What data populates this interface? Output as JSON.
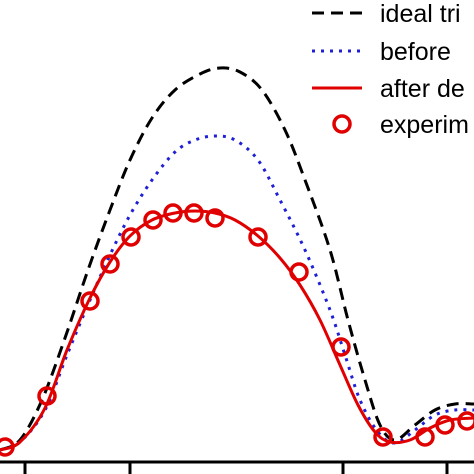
{
  "chart_data": {
    "type": "line",
    "title": "",
    "xlabel": "",
    "ylabel": "",
    "xlim": [
      0,
      474
    ],
    "ylim": [
      0,
      474
    ],
    "legend": {
      "placement": "top-right",
      "entries": [
        {
          "label": "ideal tri",
          "style": "dashed",
          "color": "#000000"
        },
        {
          "label": "before",
          "style": "dotted",
          "color": "#1f1fd6"
        },
        {
          "label": "after de",
          "style": "solid",
          "color": "#e00000"
        },
        {
          "label": "experim",
          "style": "circle",
          "color": "#e00000"
        }
      ]
    },
    "series": [
      {
        "name": "ideal tri",
        "points": [
          [
            0,
            450
          ],
          [
            20,
            440
          ],
          [
            42,
            400
          ],
          [
            65,
            338
          ],
          [
            88,
            270
          ],
          [
            110,
            210
          ],
          [
            130,
            160
          ],
          [
            152,
            118
          ],
          [
            175,
            90
          ],
          [
            200,
            74
          ],
          [
            220,
            68
          ],
          [
            240,
            72
          ],
          [
            262,
            90
          ],
          [
            285,
            130
          ],
          [
            305,
            180
          ],
          [
            330,
            250
          ],
          [
            348,
            320
          ],
          [
            365,
            380
          ],
          [
            380,
            425
          ],
          [
            395,
            440
          ],
          [
            415,
            425
          ],
          [
            435,
            410
          ],
          [
            455,
            404
          ],
          [
            474,
            404
          ]
        ]
      },
      {
        "name": "before",
        "points": [
          [
            0,
            450
          ],
          [
            20,
            442
          ],
          [
            45,
            410
          ],
          [
            67,
            355
          ],
          [
            90,
            300
          ],
          [
            110,
            255
          ],
          [
            130,
            215
          ],
          [
            152,
            180
          ],
          [
            175,
            152
          ],
          [
            195,
            140
          ],
          [
            215,
            136
          ],
          [
            235,
            140
          ],
          [
            258,
            160
          ],
          [
            280,
            200
          ],
          [
            305,
            250
          ],
          [
            330,
            310
          ],
          [
            345,
            355
          ],
          [
            360,
            400
          ],
          [
            378,
            432
          ],
          [
            395,
            443
          ],
          [
            415,
            430
          ],
          [
            435,
            415
          ],
          [
            455,
            410
          ],
          [
            474,
            410
          ]
        ]
      },
      {
        "name": "after de",
        "points": [
          [
            0,
            450
          ],
          [
            20,
            442
          ],
          [
            45,
            408
          ],
          [
            67,
            350
          ],
          [
            90,
            298
          ],
          [
            110,
            262
          ],
          [
            130,
            236
          ],
          [
            152,
            220
          ],
          [
            175,
            213
          ],
          [
            195,
            211
          ],
          [
            215,
            213
          ],
          [
            235,
            220
          ],
          [
            258,
            236
          ],
          [
            280,
            258
          ],
          [
            300,
            285
          ],
          [
            320,
            320
          ],
          [
            340,
            365
          ],
          [
            358,
            405
          ],
          [
            375,
            432
          ],
          [
            390,
            442
          ],
          [
            410,
            440
          ],
          [
            430,
            428
          ],
          [
            450,
            420
          ],
          [
            474,
            418
          ]
        ]
      },
      {
        "name": "experim",
        "points": [
          [
            5,
            447
          ],
          [
            47,
            396
          ],
          [
            90,
            301
          ],
          [
            110,
            264
          ],
          [
            131,
            237
          ],
          [
            153,
            220
          ],
          [
            173,
            213
          ],
          [
            194,
            213
          ],
          [
            215,
            218
          ],
          [
            258,
            237
          ],
          [
            299,
            272
          ],
          [
            341,
            347
          ],
          [
            383,
            437
          ],
          [
            425,
            437
          ],
          [
            445,
            425
          ],
          [
            467,
            421
          ]
        ]
      }
    ],
    "x_ticks": [
      25,
      130,
      343,
      447
    ]
  },
  "colors": {
    "ideal": "#000000",
    "before": "#1f1fd6",
    "after": "#e00000",
    "experiment": "#e00000",
    "axis": "#000000"
  }
}
